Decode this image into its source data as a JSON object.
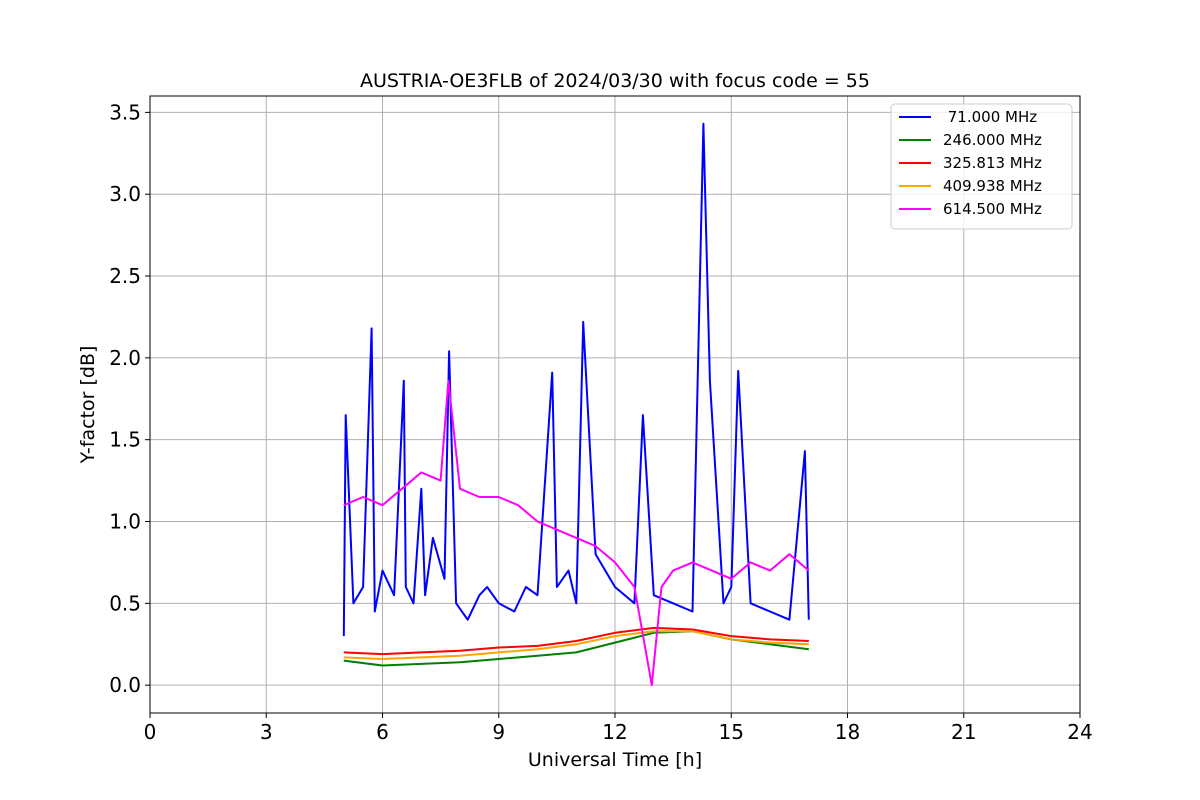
{
  "chart_data": {
    "type": "line",
    "title": "AUSTRIA-OE3FLB of 2024/03/30 with focus code = 55",
    "xlabel": "Universal Time [h]",
    "ylabel": "Y-factor [dB]",
    "xlim": [
      0,
      24
    ],
    "ylim": [
      -0.17,
      3.6
    ],
    "xticks": [
      0,
      3,
      6,
      9,
      12,
      15,
      18,
      21,
      24
    ],
    "xtick_labels": [
      "0",
      "3",
      "6",
      "9",
      "12",
      "15",
      "18",
      "21",
      "24"
    ],
    "yticks": [
      0.0,
      0.5,
      1.0,
      1.5,
      2.0,
      2.5,
      3.0,
      3.5
    ],
    "ytick_labels": [
      "0.0",
      "0.5",
      "1.0",
      "1.5",
      "2.0",
      "2.5",
      "3.0",
      "3.5"
    ],
    "grid": true,
    "legend_position": "top-right",
    "series": [
      {
        "name": " 71.000 MHz",
        "color": "#0000ff",
        "x": [
          5.0,
          5.05,
          5.25,
          5.5,
          5.72,
          5.8,
          6.0,
          6.3,
          6.55,
          6.6,
          6.8,
          7.0,
          7.1,
          7.3,
          7.6,
          7.72,
          7.9,
          8.2,
          8.5,
          8.7,
          9.0,
          9.4,
          9.7,
          10.0,
          10.38,
          10.5,
          10.8,
          11.0,
          11.18,
          11.5,
          12.0,
          12.5,
          12.72,
          13.0,
          13.5,
          14.0,
          14.28,
          14.45,
          14.8,
          15.0,
          15.18,
          15.5,
          16.0,
          16.5,
          16.9,
          17.0
        ],
        "y": [
          0.3,
          1.65,
          0.5,
          0.6,
          2.18,
          0.45,
          0.7,
          0.55,
          1.86,
          0.6,
          0.5,
          1.2,
          0.55,
          0.9,
          0.65,
          2.04,
          0.5,
          0.4,
          0.55,
          0.6,
          0.5,
          0.45,
          0.6,
          0.55,
          1.91,
          0.6,
          0.7,
          0.5,
          2.22,
          0.8,
          0.6,
          0.5,
          1.65,
          0.55,
          0.5,
          0.45,
          3.43,
          1.86,
          0.5,
          0.6,
          1.92,
          0.5,
          0.45,
          0.4,
          1.43,
          0.4
        ]
      },
      {
        "name": "246.000 MHz",
        "color": "#008000",
        "x": [
          5.0,
          6.0,
          7.0,
          8.0,
          9.0,
          10.0,
          11.0,
          12.0,
          13.0,
          14.0,
          15.0,
          16.0,
          17.0
        ],
        "y": [
          0.15,
          0.12,
          0.13,
          0.14,
          0.16,
          0.18,
          0.2,
          0.26,
          0.32,
          0.33,
          0.28,
          0.25,
          0.22
        ]
      },
      {
        "name": "325.813 MHz",
        "color": "#ff0000",
        "x": [
          5.0,
          6.0,
          7.0,
          8.0,
          9.0,
          10.0,
          11.0,
          12.0,
          13.0,
          14.0,
          15.0,
          16.0,
          17.0
        ],
        "y": [
          0.2,
          0.19,
          0.2,
          0.21,
          0.23,
          0.24,
          0.27,
          0.32,
          0.35,
          0.34,
          0.3,
          0.28,
          0.27
        ]
      },
      {
        "name": "409.938 MHz",
        "color": "#ffa500",
        "x": [
          5.0,
          6.0,
          7.0,
          8.0,
          9.0,
          10.0,
          11.0,
          12.0,
          13.0,
          14.0,
          15.0,
          16.0,
          17.0
        ],
        "y": [
          0.17,
          0.16,
          0.17,
          0.18,
          0.2,
          0.22,
          0.25,
          0.3,
          0.33,
          0.33,
          0.28,
          0.26,
          0.25
        ]
      },
      {
        "name": "614.500 MHz",
        "color": "#ff00ff",
        "x": [
          5.0,
          5.5,
          6.0,
          6.5,
          7.0,
          7.5,
          7.7,
          8.0,
          8.5,
          9.0,
          9.5,
          10.0,
          10.5,
          11.0,
          11.5,
          12.0,
          12.5,
          12.95,
          13.2,
          13.5,
          14.0,
          14.5,
          15.0,
          15.5,
          16.0,
          16.5,
          17.0
        ],
        "y": [
          1.1,
          1.15,
          1.1,
          1.2,
          1.3,
          1.25,
          1.86,
          1.2,
          1.15,
          1.15,
          1.1,
          1.0,
          0.95,
          0.9,
          0.85,
          0.75,
          0.6,
          0.0,
          0.6,
          0.7,
          0.75,
          0.7,
          0.65,
          0.75,
          0.7,
          0.8,
          0.7
        ]
      }
    ]
  }
}
